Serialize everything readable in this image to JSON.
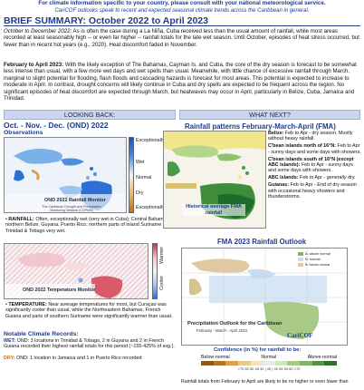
{
  "banner": {
    "line1": "For climate information specific to your country, please consult with your national meteorological service.",
    "line2": "CariCOF outlooks speak to recent and expected seasonal climate trends across the Caribbean in general."
  },
  "title": "BRIEF SUMMARY: October 2022 to April 2023",
  "summary": {
    "p1_lead": "October to December 2022:",
    "p1_text": " As is often the case during a La Niña, Cuba received less than the usual amount of rainfall, while most areas recorded at least seasonably high -- or even far higher -- rainfall totals for the late wet season. Until October, episodes of heat stress occurred, but fewer than in recent hot years (e.g., 2020). Heat discomfort faded in November.",
    "p2_lead": "February to April 2023:",
    "p2_text": " With the likely exception of The Bahamas, Cayman Is. and Cuba, the core of the dry season is forecast to be somewhat less intense than usual, with a few more wet days and wet spells than usual. Meanwhile, with little chance of excessive rainfall through March, marginal to slight potential for flooding, flash floods and cascading hazards is forecast for most areas. This potential is expected to increase to moderate in April. In contrast, drought concerns will likely continue in Cuba and dry spells are expected to be frequent across the region. No significant episodes of heat discomfort are expected through March, but heatwaves may occur in April, particularly in Belize, Cuba, Jamaica and Trinidad."
  },
  "left": {
    "header": "LOOKING BACK:",
    "title": "Oct. - Nov. - Dec. (OND) 2022",
    "obs": "Observations",
    "rain_legend": [
      "Exceptionally wet",
      "Wet",
      "Normal",
      "Dry",
      "Exceptionally dry"
    ],
    "rain_map_caption": "OND 2022 Rainfall Monitor",
    "rain_map_credit": "The Caribbean Drought and Precipitation Monitoring Network (CDPMN)",
    "rainfall_lead": "RAINFALL:",
    "rainfall_text": " Often, exceptionally wet (very wet in Cuba); Central Bahamas, northern Belize, Guyana, Puerto Rico, northern parts of inland Suriname & Trinidad & Tobago very wet.",
    "temp_legend": [
      "Warmer",
      "Cooler"
    ],
    "temp_map_caption": "OND 2022 Temperature Monitor",
    "temp_lead": "TEMPERATURE:",
    "temp_text": " Near average temperatures for most, but Curaçao was significantly cooler than usual, while the Northeastern Bahamas, French Guiana and parts of southern Suriname were significantly warmer than usual.",
    "records_title": "Notable Climate Records:",
    "wet_lead": "WET:",
    "wet_text": " OND: 3 locations in Trinidad & Tobago, 2 in Guyana and 2 in French Guiana recorded their highest rainfall totals for this period (~155-425% of avg.).",
    "dry_lead": "DRY:",
    "dry_text": " OND: 1 location in Jamaica and 1 in Puerto Rico recorded"
  },
  "right": {
    "header": "WHAT NEXT?",
    "fma_title": "Rainfall patterns February-March-April (FMA)",
    "hist_label": "Historical average FMA rainfall",
    "regions": [
      {
        "name": "Belize:",
        "text": " Feb to Apr - dry season. Mostly without heavy rainfall."
      },
      {
        "name": "C'bean islands north of 16°N:",
        "text": " Feb to Apr - sunny days and some days with showers."
      },
      {
        "name": "C'bean islands south of 16°N (except ABC Islands):",
        "text": " Feb to Apr - sunny days and some days with showers."
      },
      {
        "name": "ABC Islands:",
        "text": " Feb to Apr - generally dry."
      },
      {
        "name": "Guianas:",
        "text": " Feb to Apr - End of dry season with occasional heavy showers and thunderstorms."
      }
    ],
    "outlook_title": "FMA 2023 Rainfall Outlook",
    "outlook_map_title": "Precipitation Outlook for the Caribbean",
    "outlook_map_sub": "February - March - April 2023",
    "outlook_logo": "CariCOF",
    "outlook_legend": [
      "A: above normal",
      "N: normal",
      "B: below normal"
    ],
    "confidence_title": "Confidence (in %) for rainfall to be:",
    "confidence_cats": [
      "Below-normal",
      "Normal",
      "Above-normal"
    ],
    "confidence_scale": ">70 60 50 45 40 | 40 | 40 45 50 60 >70",
    "footer_note": "Rainfall totals from February to April are likely to be no higher or even lower than"
  },
  "colors": {
    "header_blue": "#1f3a8a",
    "panel_head": "#c9d7ee",
    "wet": "#2d6fd6",
    "dry": "#d7a24a",
    "warm": "#d85a6b",
    "cool": "#7ba6dd"
  }
}
